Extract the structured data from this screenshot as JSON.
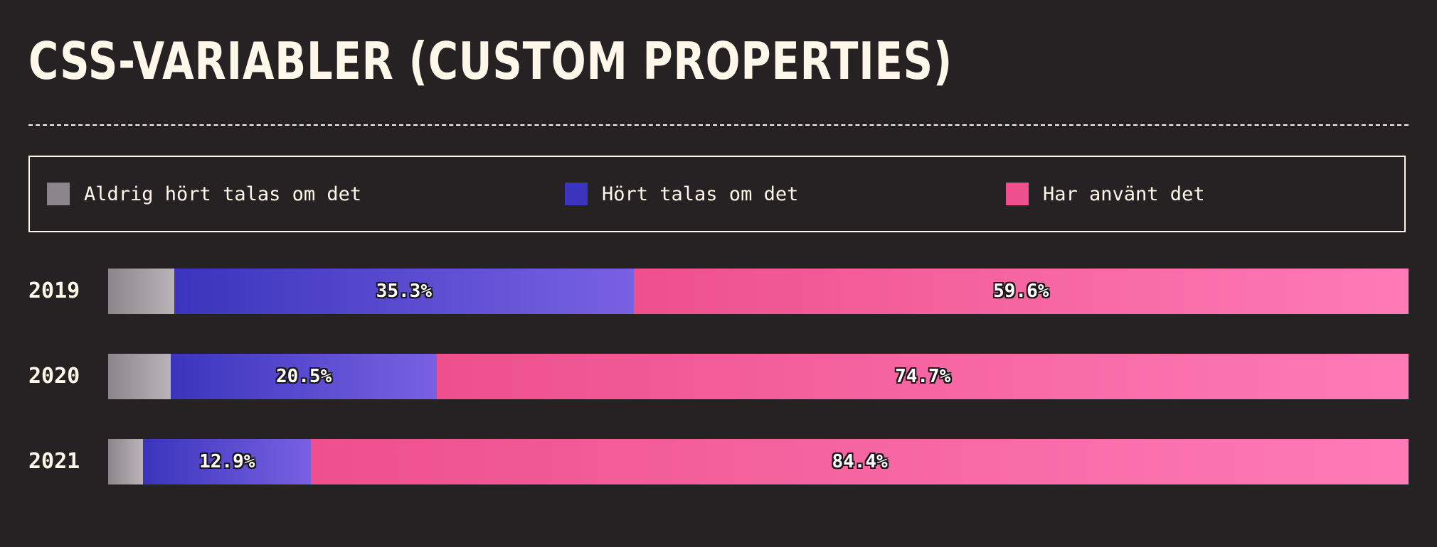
{
  "page": {
    "title": "CSS-variabler (custom properties)"
  },
  "legend": [
    {
      "label": "Aldrig hört talas om det",
      "color": "#8c868b"
    },
    {
      "label": "Hört talas om det",
      "color": "#3a35bc"
    },
    {
      "label": "Har använt det",
      "color": "#ed508d"
    }
  ],
  "chart_data": {
    "type": "bar",
    "orientation": "horizontal",
    "stacked": true,
    "normalized_percent": true,
    "categories": [
      "2019",
      "2020",
      "2021"
    ],
    "series": [
      {
        "name": "Aldrig hört talas om det",
        "values": [
          5.1,
          4.8,
          2.7
        ],
        "color": "#8c868b",
        "show_labels": false
      },
      {
        "name": "Hört talas om det",
        "values": [
          35.3,
          20.5,
          12.9
        ],
        "color": "#3a35bc",
        "show_labels": true
      },
      {
        "name": "Har använt det",
        "values": [
          59.6,
          74.7,
          84.4
        ],
        "color": "#ed508d",
        "show_labels": true
      }
    ],
    "label_format": "percent_one_decimal",
    "title": "CSS-variabler (custom properties)",
    "xlim": [
      0,
      100
    ],
    "grid": false,
    "legend_position": "top"
  }
}
